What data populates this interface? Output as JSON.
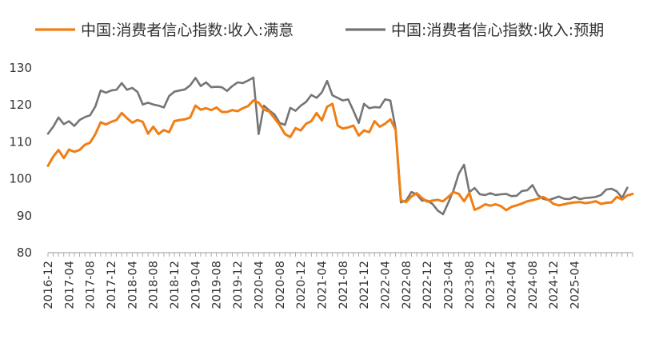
{
  "chart_data": {
    "type": "line",
    "ylim": [
      80,
      130
    ],
    "yticks": [
      "80",
      "90",
      "100",
      "110",
      "120",
      "130"
    ],
    "xticks": [
      "2016-12",
      "2017-04",
      "2017-08",
      "2017-12",
      "2018-04",
      "2018-08",
      "2018-12",
      "2019-04",
      "2019-08",
      "2019-12",
      "2020-04",
      "2020-08",
      "2020-12",
      "2021-04",
      "2021-08",
      "2021-12",
      "2022-04",
      "2022-08",
      "2022-12",
      "2023-04",
      "2023-08",
      "2023-12",
      "2024-04",
      "2024-08",
      "2024-12",
      "2025-04"
    ],
    "legend_position": "top",
    "grid": false,
    "series": [
      {
        "name": "中国:消费者信心指数:收入:满意",
        "color": "#F07E15",
        "values": [
          103.5,
          106,
          107.8,
          105.6,
          107.9,
          107.3,
          107.8,
          109.2,
          109.8,
          112.1,
          115.3,
          114.7,
          115.4,
          115.9,
          117.8,
          116.4,
          115.2,
          115.9,
          115.4,
          112.2,
          114.1,
          112.1,
          113.2,
          112.6,
          115.6,
          115.9,
          116.1,
          116.6,
          119.8,
          118.7,
          119.1,
          118.6,
          119.3,
          118.1,
          118.1,
          118.6,
          118.3,
          119.1,
          119.7,
          121.2,
          120.6,
          118.7,
          118.2,
          116.4,
          114.5,
          112.1,
          111.3,
          113.7,
          113.1,
          114.9,
          115.6,
          117.8,
          115.8,
          119.5,
          120.3,
          114.4,
          113.6,
          113.9,
          114.4,
          111.7,
          113.1,
          112.6,
          115.6,
          114.1,
          114.9,
          116.1,
          113.3,
          94.2,
          93.7,
          95.2,
          96.1,
          94.8,
          93.8,
          94.1,
          94.3,
          93.9,
          95.1,
          96.4,
          95.9,
          93.9,
          96.2,
          91.6,
          92.2,
          93.1,
          92.7,
          93.1,
          92.6,
          91.5,
          92.4,
          92.8,
          93.3,
          93.9,
          94.2,
          94.6,
          95.1,
          94.3,
          93.2,
          92.8,
          93.1,
          93.4,
          93.6,
          93.7,
          93.4,
          93.6,
          93.9,
          93.2,
          93.5,
          93.6,
          95.1,
          94.4,
          95.5,
          95.9
        ]
      },
      {
        "name": "中国:消费者信心指数:收入:预期",
        "color": "#757575",
        "values": [
          112.2,
          114.1,
          116.6,
          114.8,
          115.6,
          114.3,
          115.9,
          116.7,
          117.2,
          119.6,
          123.9,
          123.3,
          123.9,
          124.1,
          125.9,
          124.1,
          124.6,
          123.5,
          120.1,
          120.6,
          120.1,
          119.8,
          119.3,
          122.4,
          123.6,
          123.9,
          124.2,
          125.3,
          127.3,
          125.1,
          126.1,
          124.8,
          124.9,
          124.8,
          123.8,
          125.1,
          126.1,
          125.9,
          126.6,
          127.4,
          112.1,
          119.8,
          118.5,
          117.4,
          115.1,
          114.6,
          119.2,
          118.4,
          119.8,
          120.8,
          122.7,
          121.9,
          123.4,
          126.5,
          122.6,
          121.9,
          121.2,
          121.5,
          118.4,
          115.1,
          120.3,
          119.1,
          119.4,
          119.3,
          121.5,
          121.2,
          113.6,
          93.6,
          94.1,
          96.4,
          95.8,
          94.1,
          94.1,
          93.2,
          91.4,
          90.4,
          93.5,
          96.9,
          101.4,
          103.8,
          96.4,
          97.5,
          95.8,
          95.6,
          96.1,
          95.6,
          95.8,
          95.9,
          95.3,
          95.4,
          96.7,
          96.9,
          98.3,
          95.6,
          94.6,
          94.2,
          94.7,
          95.2,
          94.6,
          94.5,
          95.1,
          94.5,
          94.8,
          94.9,
          95.1,
          95.6,
          97.1,
          97.3,
          96.6,
          94.8,
          97.6
        ]
      }
    ]
  }
}
